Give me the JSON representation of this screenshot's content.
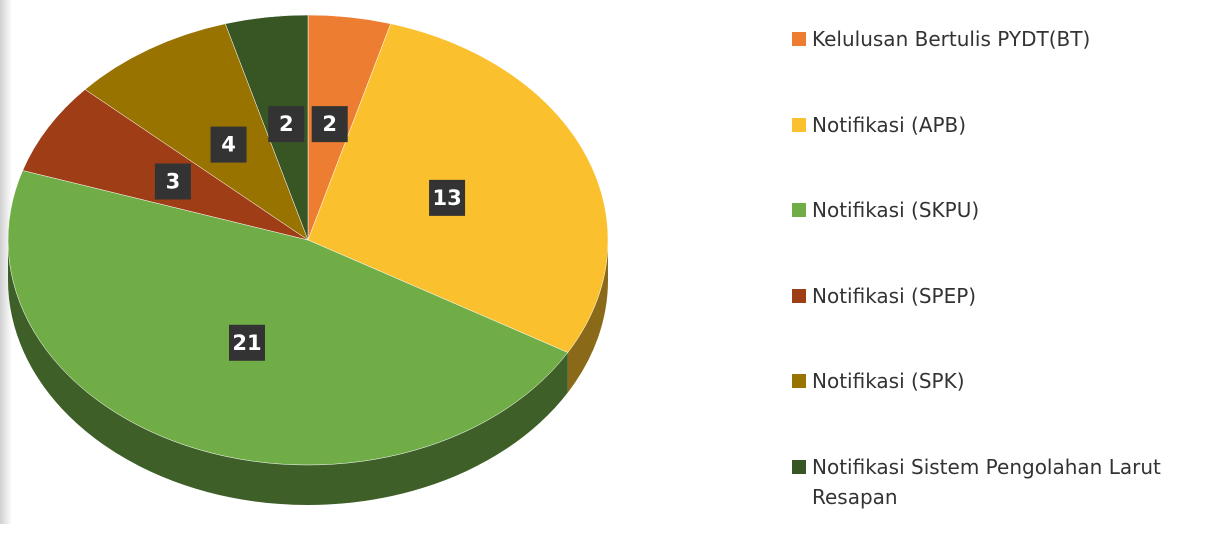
{
  "chart_data": {
    "type": "pie",
    "categories": [
      "Kelulusan Bertulis PYDT(BT)",
      "Notifikasi (APB)",
      "Notifikasi (SKPU)",
      "Notifikasi (SPEP)",
      "Notifikasi (SPK)",
      "Notifikasi Sistem Pengolahan Larut Resapan"
    ],
    "values": [
      2,
      13,
      21,
      3,
      4,
      2
    ],
    "colors": [
      "#ed7d31",
      "#fbc02d",
      "#70ad47",
      "#9e3d16",
      "#997300",
      "#375623"
    ],
    "legend": "right"
  }
}
